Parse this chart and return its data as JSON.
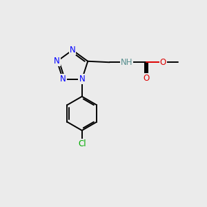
{
  "bg_color": "#ebebeb",
  "bond_color": "#000000",
  "N_color": "#0000ff",
  "O_color": "#dd0000",
  "Cl_color": "#00aa00",
  "H_color": "#5a9090",
  "font_size": 8.5,
  "line_width": 1.4,
  "fig_w": 3.0,
  "fig_h": 3.0,
  "dpi": 100,
  "xlim": [
    0,
    10
  ],
  "ylim": [
    0,
    10
  ]
}
